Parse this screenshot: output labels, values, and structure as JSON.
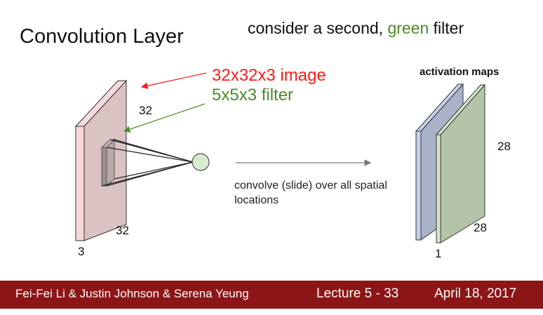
{
  "slide": {
    "title": "Convolution Layer",
    "subtitle_prefix": "consider a second, ",
    "subtitle_highlight": "green",
    "subtitle_suffix": " filter"
  },
  "diagram": {
    "image_label": "32x32x3 image",
    "filter_label": "5x5x3 filter",
    "input_height": "32",
    "input_width": "32",
    "input_depth": "3",
    "convolve_text": "convolve (slide) over all spatial locations",
    "activation_title": "activation maps",
    "output_height": "28",
    "output_width": "28",
    "output_depth": "1"
  },
  "footer": {
    "authors": "Fei-Fei Li & Justin Johnson & Serena Yeung",
    "lecture": "Lecture 5 - 33",
    "date": "April 18, 2017"
  },
  "colors": {
    "red": "#ff1a1a",
    "green": "#4f8a2a",
    "footer_bg": "#8c1515"
  }
}
